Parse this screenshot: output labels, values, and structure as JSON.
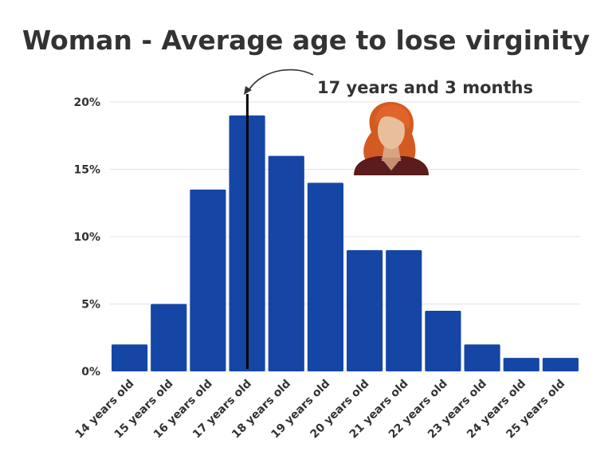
{
  "chart_data": {
    "type": "bar",
    "title": "Woman - Average age to lose virginity",
    "categories": [
      "14 years old",
      "15 years old",
      "16 years old",
      "17 years old",
      "18 years old",
      "19 years old",
      "20 years old",
      "21 years old",
      "22 years old",
      "23 years old",
      "24 years old",
      "25 years old"
    ],
    "values": [
      2,
      5,
      13.5,
      19,
      16,
      14,
      9,
      9,
      4.5,
      2,
      1,
      1
    ],
    "ylim": [
      0,
      20
    ],
    "yticks": [
      "0%",
      "5%",
      "10%",
      "15%",
      "20%"
    ],
    "grid": true,
    "bar_color": "#1546a6",
    "annotation": {
      "text": "17 years and 3 months",
      "x_value": 17.25
    }
  }
}
